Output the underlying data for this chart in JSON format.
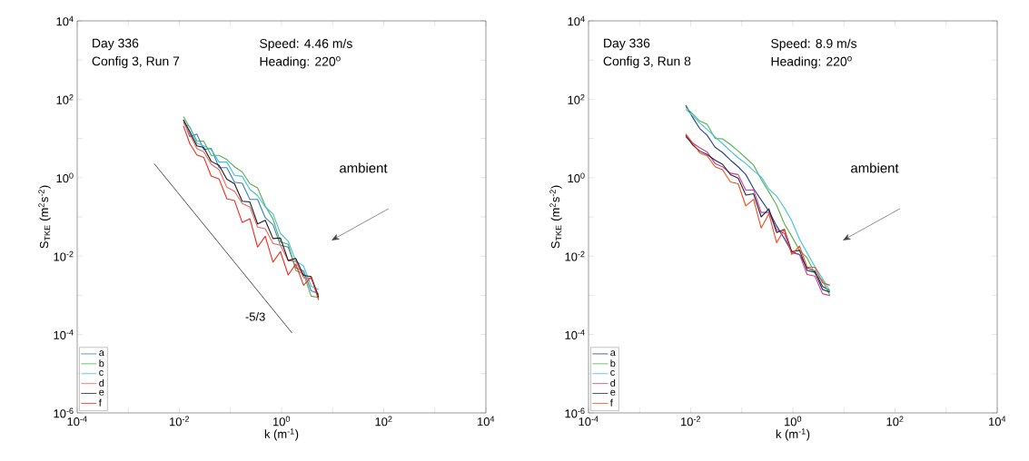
{
  "chart_data": [
    {
      "type": "line",
      "xlabel": "k (m$^{-1}$)",
      "ylabel": "S$_{TKE}$ (m$^{2}$s$^{-2}$)",
      "log": "xy",
      "xlim": [
        0.0001,
        10000
      ],
      "ylim": [
        1e-06,
        10000
      ],
      "xticks": [
        {
          "value": 0.0001,
          "label": "10$^{-4}$"
        },
        {
          "value": 0.001,
          "label": null
        },
        {
          "value": 0.01,
          "label": "10$^{-2}$"
        },
        {
          "value": 0.1,
          "label": null
        },
        {
          "value": 1,
          "label": "10$^{0}$"
        },
        {
          "value": 10,
          "label": null
        },
        {
          "value": 100,
          "label": "10$^{2}$"
        },
        {
          "value": 1000,
          "label": null
        },
        {
          "value": 10000,
          "label": "10$^{4}$"
        }
      ],
      "yticks": [
        {
          "value": 1e-06,
          "label": "10$^{-6}$"
        },
        {
          "value": 1e-05,
          "label": null
        },
        {
          "value": 0.0001,
          "label": "10$^{-4}$"
        },
        {
          "value": 0.001,
          "label": null
        },
        {
          "value": 0.01,
          "label": "10$^{-2}$"
        },
        {
          "value": 0.1,
          "label": null
        },
        {
          "value": 1,
          "label": "10$^{0}$"
        },
        {
          "value": 10,
          "label": null
        },
        {
          "value": 100,
          "label": "10$^{2}$"
        },
        {
          "value": 1000,
          "label": null
        },
        {
          "value": 10000,
          "label": "10$^{4}$"
        }
      ],
      "legend": "bottom left",
      "x": [
        0.012,
        0.016,
        0.022,
        0.03,
        0.042,
        0.06,
        0.085,
        0.12,
        0.17,
        0.24,
        0.34,
        0.48,
        0.68,
        0.95,
        1.35,
        1.9,
        2.7,
        3.8,
        5.3
      ],
      "series": [
        {
          "name": "a",
          "color": "#3a7fc0",
          "values": [
            30,
            11,
            13,
            5.2,
            5.6,
            1.8,
            1.8,
            0.77,
            0.72,
            0.28,
            0.28,
            0.095,
            0.063,
            0.019,
            0.017,
            0.005,
            0.0042,
            0.0013,
            0.0011
          ]
        },
        {
          "name": "b",
          "color": "#56b04a",
          "values": [
            36,
            19,
            8.7,
            8.5,
            3.7,
            3.7,
            2.9,
            1.9,
            1.4,
            0.7,
            0.55,
            0.19,
            0.088,
            0.023,
            0.02,
            0.0043,
            0.0035,
            0.00095,
            0.00088
          ]
        },
        {
          "name": "c",
          "color": "#3fbfdf",
          "values": [
            24,
            20,
            7.6,
            6.5,
            5.2,
            2.5,
            2.5,
            1.15,
            1.08,
            0.5,
            0.35,
            0.18,
            0.12,
            0.038,
            0.024,
            0.0074,
            0.0056,
            0.0017,
            0.0014
          ]
        },
        {
          "name": "d",
          "color": "#f06060",
          "values": [
            27,
            13,
            5.5,
            4.6,
            2.2,
            1.6,
            0.57,
            0.45,
            0.22,
            0.18,
            0.055,
            0.05,
            0.021,
            0.019,
            0.0077,
            0.0074,
            0.0028,
            0.0027,
            0.001
          ]
        },
        {
          "name": "e",
          "color": "#1a1a1a",
          "values": [
            30,
            15,
            6.5,
            5.9,
            2.6,
            2.05,
            0.91,
            0.7,
            0.25,
            0.24,
            0.066,
            0.082,
            0.028,
            0.029,
            0.0077,
            0.0087,
            0.0032,
            0.003,
            0.00088
          ]
        },
        {
          "name": "f",
          "color": "#ee2a1a",
          "values": [
            21,
            7.4,
            3.8,
            3.3,
            1.1,
            0.92,
            0.29,
            0.26,
            0.072,
            0.09,
            0.017,
            0.032,
            0.007,
            0.013,
            0.0033,
            0.0062,
            0.0018,
            0.0029,
            0.00077
          ]
        },
        {
          "name": "-5/3",
          "color": "#000000",
          "x": [
            0.0032,
            1.6
          ],
          "values": [
            2.3,
            0.00011
          ]
        }
      ],
      "annotations": [
        "Day  336",
        "Config 3, Run 7",
        "Speed: 4.46 m/s",
        "Heading: 220$^{o}$",
        "ambient"
      ]
    },
    {
      "type": "line",
      "xlabel": "k (m$^{-1}$)",
      "ylabel": "S$_{TKE}$ (m$^{2}$s$^{-2}$)",
      "log": "xy",
      "xlim": [
        0.0001,
        10000
      ],
      "ylim": [
        1e-06,
        10000
      ],
      "xticks": [
        {
          "value": 0.0001,
          "label": "10$^{-4}$"
        },
        {
          "value": 0.001,
          "label": null
        },
        {
          "value": 0.01,
          "label": "10$^{-2}$"
        },
        {
          "value": 0.1,
          "label": null
        },
        {
          "value": 1,
          "label": "10$^{0}$"
        },
        {
          "value": 10,
          "label": null
        },
        {
          "value": 100,
          "label": "10$^{2}$"
        },
        {
          "value": 1000,
          "label": null
        },
        {
          "value": 10000,
          "label": "10$^{4}$"
        }
      ],
      "yticks": [
        {
          "value": 1e-06,
          "label": "10$^{-6}$"
        },
        {
          "value": 1e-05,
          "label": null
        },
        {
          "value": 0.0001,
          "label": "10$^{-4}$"
        },
        {
          "value": 0.001,
          "label": null
        },
        {
          "value": 0.01,
          "label": "10$^{-2}$"
        },
        {
          "value": 0.1,
          "label": null
        },
        {
          "value": 1,
          "label": "10$^{0}$"
        },
        {
          "value": 10,
          "label": null
        },
        {
          "value": 100,
          "label": "10$^{2}$"
        },
        {
          "value": 1000,
          "label": null
        },
        {
          "value": 10000,
          "label": "10$^{4}$"
        }
      ],
      "legend": "bottom left",
      "x": [
        0.008,
        0.011,
        0.015,
        0.021,
        0.03,
        0.042,
        0.06,
        0.085,
        0.12,
        0.17,
        0.24,
        0.34,
        0.48,
        0.68,
        0.95,
        1.35,
        1.9,
        2.7,
        3.8,
        5.3
      ],
      "series": [
        {
          "name": "a",
          "color": "#1f3f8a",
          "values": [
            70,
            34,
            18,
            12,
            6,
            4.4,
            2.8,
            1.9,
            1.2,
            0.53,
            0.27,
            0.14,
            0.059,
            0.028,
            0.013,
            0.011,
            0.005,
            0.0042,
            0.0017,
            0.0013
          ]
        },
        {
          "name": "b",
          "color": "#56b04a",
          "values": [
            63,
            42,
            28,
            23,
            10,
            9.8,
            7,
            4.8,
            3.2,
            2.1,
            0.9,
            0.43,
            0.2,
            0.067,
            0.032,
            0.014,
            0.009,
            0.0036,
            0.0024,
            0.001
          ]
        },
        {
          "name": "c",
          "color": "#3fbfdf",
          "values": [
            56,
            38,
            25,
            17,
            11,
            7.4,
            4.8,
            3.2,
            2.3,
            1.5,
            1.05,
            0.51,
            0.34,
            0.17,
            0.08,
            0.027,
            0.012,
            0.0054,
            0.0027,
            0.0013
          ]
        },
        {
          "name": "d",
          "color": "#d03c8c",
          "values": [
            11,
            7.6,
            5.8,
            4.5,
            2.3,
            1.9,
            1.3,
            1.2,
            0.48,
            0.49,
            0.13,
            0.13,
            0.047,
            0.038,
            0.012,
            0.011,
            0.0034,
            0.0031,
            0.0011,
            0.00098
          ]
        },
        {
          "name": "e",
          "color": "#222244",
          "values": [
            12,
            6.8,
            4.8,
            3.9,
            2.8,
            2.2,
            1.2,
            0.98,
            0.36,
            0.39,
            0.1,
            0.16,
            0.04,
            0.048,
            0.013,
            0.014,
            0.0043,
            0.0039,
            0.0014,
            0.0012
          ]
        },
        {
          "name": "f",
          "color": "#f04a1e",
          "values": [
            13,
            7.6,
            4.3,
            3.6,
            1.9,
            1.6,
            0.78,
            0.7,
            0.19,
            0.28,
            0.052,
            0.12,
            0.022,
            0.048,
            0.011,
            0.018,
            0.0052,
            0.0052,
            0.0021,
            0.0018
          ]
        }
      ],
      "annotations": [
        "Day  336",
        "Config 3, Run 8",
        "Speed: 8.9 m/s",
        "Heading: 220$^{o}$",
        "ambient"
      ]
    }
  ]
}
